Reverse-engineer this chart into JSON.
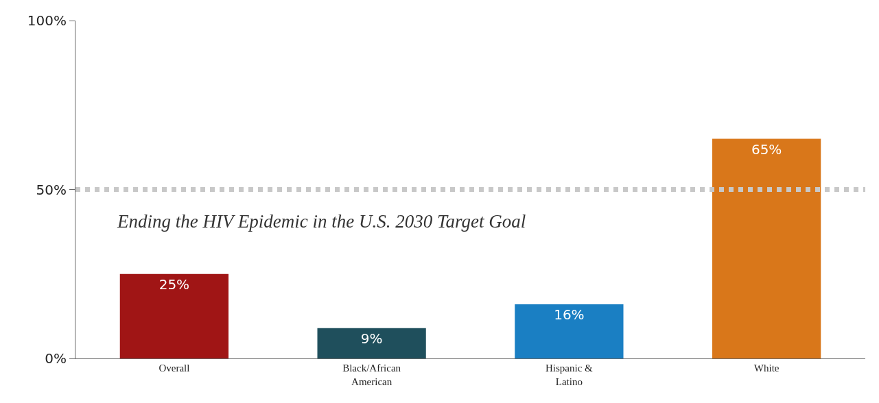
{
  "chart_data": {
    "type": "bar",
    "categories": [
      "Overall",
      "Black/African\nAmerican",
      "Hispanic &\nLatino",
      "White"
    ],
    "values": [
      25,
      9,
      16,
      65
    ],
    "colors": [
      "#a01515",
      "#1f4f5c",
      "#1a7fc3",
      "#d9771a"
    ],
    "value_labels": [
      "25%",
      "9%",
      "16%",
      "65%"
    ],
    "ylim": [
      0,
      100
    ],
    "yticks": [
      {
        "value": 0,
        "label": "0%"
      },
      {
        "value": 50,
        "label": "50%"
      },
      {
        "value": 100,
        "label": "100%"
      }
    ],
    "ref_lines": [
      {
        "axis": "y",
        "value": 50,
        "label": "Ending the HIV Epidemic in the U.S. 2030 Target Goal",
        "color": "#c8c8c8",
        "line_style": "dotted"
      }
    ],
    "grid": false
  }
}
